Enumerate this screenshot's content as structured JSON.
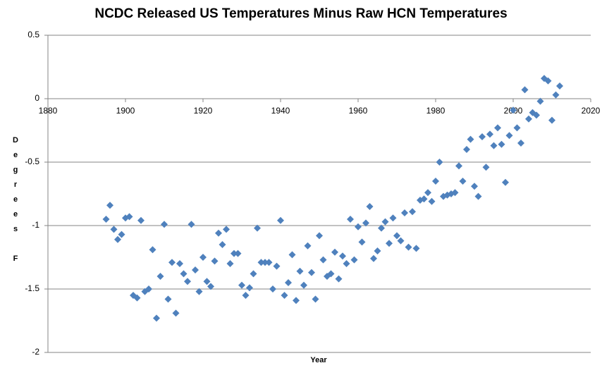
{
  "chart_data": {
    "type": "scatter",
    "title": "NCDC Released US Temperatures Minus Raw HCN Temperatures",
    "x_label": "Year",
    "y_label": "Degrees F",
    "xlim": [
      1880,
      2020
    ],
    "xticks": [
      1880,
      1900,
      1920,
      1940,
      1960,
      1980,
      2000,
      2020
    ],
    "ylim": [
      -2,
      0.5
    ],
    "yticks": [
      0.5,
      0,
      -0.5,
      -1,
      -1.5,
      -2
    ],
    "grid": true,
    "series": [
      {
        "color": "#4f81bd",
        "x": [
          1895,
          1896,
          1897,
          1898,
          1899,
          1900,
          1901,
          1902,
          1903,
          1904,
          1905,
          1906,
          1907,
          1908,
          1909,
          1910,
          1911,
          1912,
          1913,
          1914,
          1915,
          1916,
          1917,
          1918,
          1919,
          1920,
          1921,
          1922,
          1923,
          1924,
          1925,
          1926,
          1927,
          1928,
          1929,
          1930,
          1931,
          1932,
          1933,
          1934,
          1935,
          1936,
          1937,
          1938,
          1939,
          1940,
          1941,
          1942,
          1943,
          1944,
          1945,
          1946,
          1947,
          1948,
          1949,
          1950,
          1951,
          1952,
          1953,
          1954,
          1955,
          1956,
          1957,
          1958,
          1959,
          1960,
          1961,
          1962,
          1963,
          1964,
          1965,
          1966,
          1967,
          1968,
          1969,
          1970,
          1971,
          1972,
          1973,
          1974,
          1975,
          1976,
          1977,
          1978,
          1979,
          1980,
          1981,
          1982,
          1983,
          1984,
          1985,
          1986,
          1987,
          1988,
          1989,
          1990,
          1991,
          1992,
          1993,
          1994,
          1995,
          1996,
          1997,
          1998,
          1999,
          2000,
          2001,
          2002,
          2003,
          2004,
          2005,
          2006,
          2007,
          2008,
          2009,
          2010,
          2011,
          2012
        ],
        "values": [
          -0.95,
          -0.84,
          -1.03,
          -1.11,
          -1.07,
          -0.94,
          -0.93,
          -1.55,
          -1.57,
          -0.96,
          -1.52,
          -1.5,
          -1.19,
          -1.73,
          -1.4,
          -0.99,
          -1.58,
          -1.29,
          -1.69,
          -1.3,
          -1.38,
          -1.44,
          -0.99,
          -1.35,
          -1.52,
          -1.25,
          -1.44,
          -1.48,
          -1.28,
          -1.06,
          -1.15,
          -1.03,
          -1.3,
          -1.22,
          -1.22,
          -1.47,
          -1.55,
          -1.49,
          -1.38,
          -1.02,
          -1.29,
          -1.29,
          -1.29,
          -1.5,
          -1.32,
          -0.96,
          -1.55,
          -1.45,
          -1.23,
          -1.59,
          -1.36,
          -1.47,
          -1.16,
          -1.37,
          -1.58,
          -1.08,
          -1.27,
          -1.4,
          -1.38,
          -1.21,
          -1.42,
          -1.24,
          -1.3,
          -0.95,
          -1.27,
          -1.01,
          -1.13,
          -0.98,
          -0.85,
          -1.26,
          -1.2,
          -1.02,
          -0.97,
          -1.14,
          -0.94,
          -1.08,
          -1.12,
          -0.9,
          -1.17,
          -0.89,
          -1.18,
          -0.8,
          -0.79,
          -0.74,
          -0.81,
          -0.65,
          -0.5,
          -0.77,
          -0.76,
          -0.75,
          -0.74,
          -0.53,
          -0.65,
          -0.4,
          -0.32,
          -0.69,
          -0.77,
          -0.3,
          -0.54,
          -0.28,
          -0.37,
          -0.23,
          -0.36,
          -0.66,
          -0.29,
          -0.09,
          -0.23,
          -0.35,
          0.07,
          -0.16,
          -0.11,
          -0.13,
          -0.02,
          0.16,
          0.14,
          -0.17,
          0.03,
          0.1
        ]
      }
    ]
  }
}
